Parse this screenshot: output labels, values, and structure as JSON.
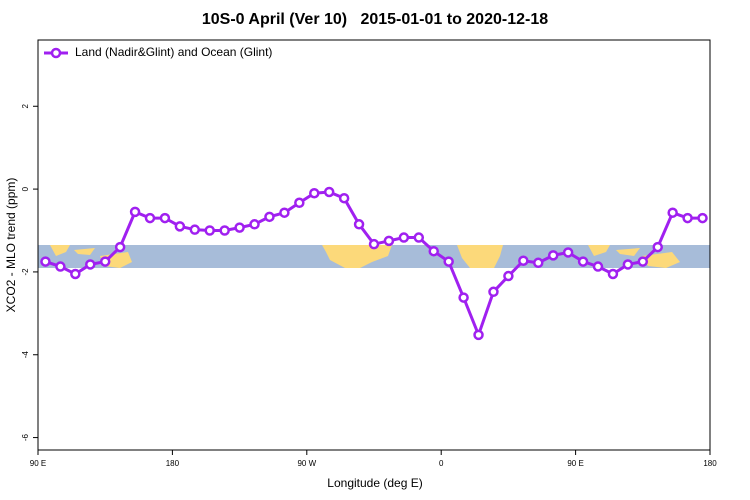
{
  "chart_data": {
    "type": "line",
    "title": "10S-0 April (Ver 10)   2015-01-01 to 2020-12-18",
    "x_label": "Longitude (deg E)",
    "y_label": "XCO2 - MLO trend (ppm)",
    "x": [
      95,
      105,
      115,
      125,
      135,
      145,
      155,
      165,
      175,
      185,
      195,
      205,
      215,
      225,
      235,
      245,
      255,
      265,
      275,
      285,
      295,
      305,
      315,
      325,
      335,
      345,
      355,
      365,
      375,
      385,
      395,
      405,
      415,
      425,
      435,
      445,
      455,
      465,
      475,
      485,
      495,
      505,
      515,
      525,
      535
    ],
    "series": [
      {
        "name": "Land (Nadir&Glint) and Ocean (Glint)",
        "color": "#a020f0",
        "values": [
          -1.75,
          -1.87,
          -2.05,
          -1.82,
          -1.75,
          -1.4,
          -0.55,
          -0.7,
          -0.7,
          -0.9,
          -0.98,
          -1.0,
          -1.0,
          -0.93,
          -0.85,
          -0.67,
          -0.57,
          -0.33,
          -0.1,
          -0.07,
          -0.22,
          -0.85,
          -1.33,
          -1.25,
          -1.17,
          -1.17,
          -1.5,
          -1.75,
          -2.62,
          -3.52,
          -2.48,
          -2.1,
          -1.73,
          -1.78,
          -1.6,
          -1.53,
          -1.75,
          -1.87,
          -2.05,
          -1.82,
          -1.75,
          -1.4,
          -0.57,
          -0.7,
          -0.7
        ]
      }
    ],
    "xlim": [
      90,
      540
    ],
    "xticks": [
      {
        "value": 90,
        "label": "90 E"
      },
      180,
      {
        "value": 270,
        "label": "90 W"
      },
      {
        "value": 360,
        "label": "0"
      },
      {
        "value": 450,
        "label": "90 E"
      },
      {
        "value": 540,
        "label": "180"
      }
    ],
    "ylim": [
      -6.3,
      3.6
    ],
    "yticks": [
      2,
      0,
      -2,
      -4,
      -6
    ],
    "legend_position": "top-left"
  }
}
